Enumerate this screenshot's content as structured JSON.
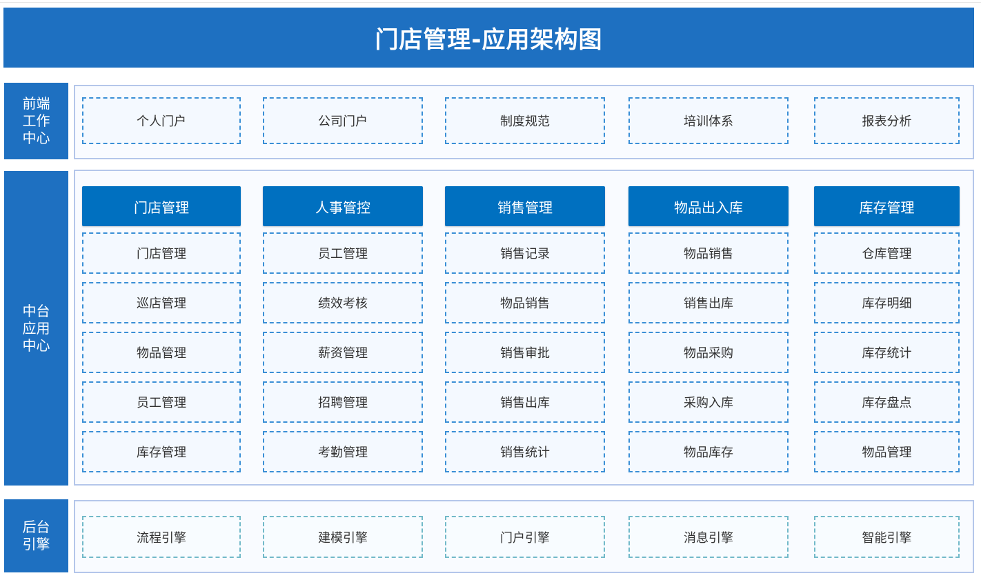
{
  "title": "门店管理-应用架构图",
  "colors": {
    "primary": "#1e70c1",
    "header": "#0070c0",
    "dashed_border": "#3a8fd6",
    "backend_border": "#72b9c9"
  },
  "layers": {
    "front": {
      "label": "前端工作中心",
      "items": [
        "个人门户",
        "公司门户",
        "制度规范",
        "培训体系",
        "报表分析"
      ]
    },
    "middle": {
      "label": "中台应用中心",
      "columns": [
        {
          "header": "门店管理",
          "items": [
            "门店管理",
            "巡店管理",
            "物品管理",
            "员工管理",
            "库存管理"
          ]
        },
        {
          "header": "人事管控",
          "items": [
            "员工管理",
            "绩效考核",
            "薪资管理",
            "招聘管理",
            "考勤管理"
          ]
        },
        {
          "header": "销售管理",
          "items": [
            "销售记录",
            "物品销售",
            "销售审批",
            "销售出库",
            "销售统计"
          ]
        },
        {
          "header": "物品出入库",
          "items": [
            "物品销售",
            "销售出库",
            "物品采购",
            "采购入库",
            "物品库存"
          ]
        },
        {
          "header": "库存管理",
          "items": [
            "仓库管理",
            "库存明细",
            "库存统计",
            "库存盘点",
            "物品管理"
          ]
        }
      ]
    },
    "back": {
      "label": "后台引擎",
      "items": [
        "流程引擎",
        "建模引擎",
        "门户引擎",
        "消息引擎",
        "智能引擎"
      ]
    }
  }
}
